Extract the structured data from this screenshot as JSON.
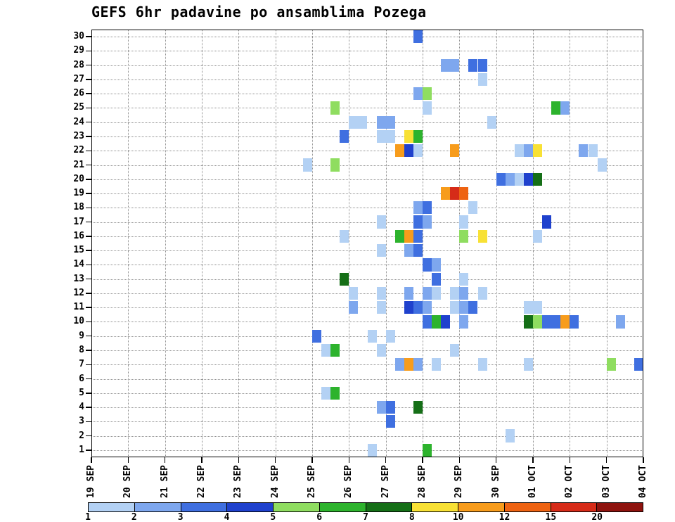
{
  "chart_data": {
    "type": "heatmap",
    "title": "GEFS 6hr padavine po ansamblima Pozega",
    "xlabel": "",
    "ylabel": "",
    "steps_per_day": 4,
    "x_tick_labels": [
      "19 SEP",
      "20 SEP",
      "21 SEP",
      "22 SEP",
      "23 SEP",
      "24 SEP",
      "25 SEP",
      "26 SEP",
      "27 SEP",
      "28 SEP",
      "29 SEP",
      "30 SEP",
      "01 OCT",
      "02 OCT",
      "03 OCT",
      "04 OCT"
    ],
    "y_tick_labels": [
      1,
      2,
      3,
      4,
      5,
      6,
      7,
      8,
      9,
      10,
      11,
      12,
      13,
      14,
      15,
      16,
      17,
      18,
      19,
      20,
      21,
      22,
      23,
      24,
      25,
      26,
      27,
      28,
      29,
      30
    ],
    "grid": {
      "style": "dotted",
      "color": "#8f8f8f"
    },
    "axis_color": "#000000",
    "background": "#ffffff",
    "legend": {
      "position": "bottom",
      "values": [
        1,
        2,
        3,
        4,
        5,
        6,
        7,
        8,
        10,
        12,
        15,
        20
      ],
      "colors": [
        "#b3d1f4",
        "#7ea7ee",
        "#3f6fe0",
        "#1f41cd",
        "#8fdd60",
        "#2db32d",
        "#156f17",
        "#f8e135",
        "#f79c1c",
        "#ee6312",
        "#d62b18",
        "#8e130e"
      ]
    },
    "cells": [
      {
        "m": 30,
        "s": 35,
        "v": 3
      },
      {
        "m": 28,
        "s": 38,
        "v": 2
      },
      {
        "m": 28,
        "s": 39,
        "v": 2
      },
      {
        "m": 28,
        "s": 41,
        "v": 3
      },
      {
        "m": 28,
        "s": 42,
        "v": 3
      },
      {
        "m": 27,
        "s": 42,
        "v": 1
      },
      {
        "m": 26,
        "s": 35,
        "v": 2
      },
      {
        "m": 26,
        "s": 36,
        "v": 5
      },
      {
        "m": 25,
        "s": 26,
        "v": 5
      },
      {
        "m": 25,
        "s": 36,
        "v": 1
      },
      {
        "m": 25,
        "s": 50,
        "v": 6
      },
      {
        "m": 25,
        "s": 51,
        "v": 2
      },
      {
        "m": 24,
        "s": 28,
        "v": 1
      },
      {
        "m": 24,
        "s": 29,
        "v": 1
      },
      {
        "m": 24,
        "s": 31,
        "v": 2
      },
      {
        "m": 24,
        "s": 32,
        "v": 2
      },
      {
        "m": 24,
        "s": 43,
        "v": 1
      },
      {
        "m": 23,
        "s": 27,
        "v": 3
      },
      {
        "m": 23,
        "s": 31,
        "v": 1
      },
      {
        "m": 23,
        "s": 32,
        "v": 1
      },
      {
        "m": 23,
        "s": 34,
        "v": 8
      },
      {
        "m": 23,
        "s": 35,
        "v": 6
      },
      {
        "m": 22,
        "s": 33,
        "v": 10
      },
      {
        "m": 22,
        "s": 34,
        "v": 4
      },
      {
        "m": 22,
        "s": 35,
        "v": 1
      },
      {
        "m": 22,
        "s": 39,
        "v": 10
      },
      {
        "m": 22,
        "s": 46,
        "v": 1
      },
      {
        "m": 22,
        "s": 47,
        "v": 2
      },
      {
        "m": 22,
        "s": 48,
        "v": 8
      },
      {
        "m": 22,
        "s": 53,
        "v": 2
      },
      {
        "m": 22,
        "s": 54,
        "v": 1
      },
      {
        "m": 21,
        "s": 23,
        "v": 1
      },
      {
        "m": 21,
        "s": 26,
        "v": 5
      },
      {
        "m": 21,
        "s": 55,
        "v": 1
      },
      {
        "m": 20,
        "s": 44,
        "v": 3
      },
      {
        "m": 20,
        "s": 45,
        "v": 2
      },
      {
        "m": 20,
        "s": 46,
        "v": 1
      },
      {
        "m": 20,
        "s": 47,
        "v": 4
      },
      {
        "m": 20,
        "s": 48,
        "v": 7
      },
      {
        "m": 19,
        "s": 38,
        "v": 10
      },
      {
        "m": 19,
        "s": 39,
        "v": 15
      },
      {
        "m": 19,
        "s": 40,
        "v": 12
      },
      {
        "m": 18,
        "s": 35,
        "v": 2
      },
      {
        "m": 18,
        "s": 36,
        "v": 3
      },
      {
        "m": 18,
        "s": 41,
        "v": 1
      },
      {
        "m": 17,
        "s": 31,
        "v": 1
      },
      {
        "m": 17,
        "s": 35,
        "v": 3
      },
      {
        "m": 17,
        "s": 36,
        "v": 2
      },
      {
        "m": 17,
        "s": 40,
        "v": 1
      },
      {
        "m": 17,
        "s": 49,
        "v": 4
      },
      {
        "m": 16,
        "s": 27,
        "v": 1
      },
      {
        "m": 16,
        "s": 33,
        "v": 6
      },
      {
        "m": 16,
        "s": 34,
        "v": 10
      },
      {
        "m": 16,
        "s": 35,
        "v": 3
      },
      {
        "m": 16,
        "s": 40,
        "v": 5
      },
      {
        "m": 16,
        "s": 42,
        "v": 8
      },
      {
        "m": 16,
        "s": 48,
        "v": 1
      },
      {
        "m": 15,
        "s": 31,
        "v": 1
      },
      {
        "m": 15,
        "s": 34,
        "v": 2
      },
      {
        "m": 15,
        "s": 35,
        "v": 3
      },
      {
        "m": 14,
        "s": 36,
        "v": 3
      },
      {
        "m": 14,
        "s": 37,
        "v": 2
      },
      {
        "m": 13,
        "s": 27,
        "v": 7
      },
      {
        "m": 13,
        "s": 37,
        "v": 3
      },
      {
        "m": 13,
        "s": 40,
        "v": 1
      },
      {
        "m": 12,
        "s": 28,
        "v": 1
      },
      {
        "m": 12,
        "s": 31,
        "v": 1
      },
      {
        "m": 12,
        "s": 34,
        "v": 2
      },
      {
        "m": 12,
        "s": 36,
        "v": 2
      },
      {
        "m": 12,
        "s": 37,
        "v": 1
      },
      {
        "m": 12,
        "s": 39,
        "v": 1
      },
      {
        "m": 12,
        "s": 40,
        "v": 2
      },
      {
        "m": 12,
        "s": 42,
        "v": 1
      },
      {
        "m": 11,
        "s": 28,
        "v": 2
      },
      {
        "m": 11,
        "s": 31,
        "v": 1
      },
      {
        "m": 11,
        "s": 34,
        "v": 4
      },
      {
        "m": 11,
        "s": 35,
        "v": 3
      },
      {
        "m": 11,
        "s": 36,
        "v": 2
      },
      {
        "m": 11,
        "s": 39,
        "v": 1
      },
      {
        "m": 11,
        "s": 40,
        "v": 2
      },
      {
        "m": 11,
        "s": 41,
        "v": 3
      },
      {
        "m": 11,
        "s": 47,
        "v": 1
      },
      {
        "m": 11,
        "s": 48,
        "v": 1
      },
      {
        "m": 10,
        "s": 36,
        "v": 3
      },
      {
        "m": 10,
        "s": 37,
        "v": 6
      },
      {
        "m": 10,
        "s": 38,
        "v": 4
      },
      {
        "m": 10,
        "s": 40,
        "v": 2
      },
      {
        "m": 10,
        "s": 47,
        "v": 7
      },
      {
        "m": 10,
        "s": 48,
        "v": 5
      },
      {
        "m": 10,
        "s": 49,
        "v": 3
      },
      {
        "m": 10,
        "s": 50,
        "v": 3
      },
      {
        "m": 10,
        "s": 51,
        "v": 10
      },
      {
        "m": 10,
        "s": 52,
        "v": 3
      },
      {
        "m": 10,
        "s": 57,
        "v": 2
      },
      {
        "m": 9,
        "s": 24,
        "v": 3
      },
      {
        "m": 9,
        "s": 30,
        "v": 1
      },
      {
        "m": 9,
        "s": 32,
        "v": 1
      },
      {
        "m": 8,
        "s": 25,
        "v": 1
      },
      {
        "m": 8,
        "s": 26,
        "v": 6
      },
      {
        "m": 8,
        "s": 31,
        "v": 1
      },
      {
        "m": 8,
        "s": 39,
        "v": 1
      },
      {
        "m": 7,
        "s": 33,
        "v": 2
      },
      {
        "m": 7,
        "s": 34,
        "v": 10
      },
      {
        "m": 7,
        "s": 35,
        "v": 2
      },
      {
        "m": 7,
        "s": 37,
        "v": 1
      },
      {
        "m": 7,
        "s": 42,
        "v": 1
      },
      {
        "m": 7,
        "s": 47,
        "v": 1
      },
      {
        "m": 7,
        "s": 56,
        "v": 5
      },
      {
        "m": 7,
        "s": 59,
        "v": 3
      },
      {
        "m": 5,
        "s": 25,
        "v": 1
      },
      {
        "m": 5,
        "s": 26,
        "v": 6
      },
      {
        "m": 4,
        "s": 31,
        "v": 2
      },
      {
        "m": 4,
        "s": 32,
        "v": 3
      },
      {
        "m": 4,
        "s": 35,
        "v": 7
      },
      {
        "m": 3,
        "s": 32,
        "v": 3
      },
      {
        "m": 2,
        "s": 45,
        "v": 1
      },
      {
        "m": 1,
        "s": 30,
        "v": 1
      },
      {
        "m": 1,
        "s": 36,
        "v": 6
      }
    ]
  }
}
